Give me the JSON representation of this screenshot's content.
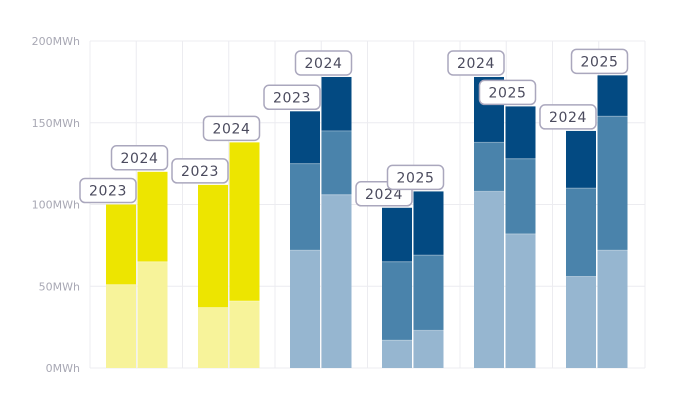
{
  "chart_data": {
    "type": "bar",
    "stacked": true,
    "grouped": true,
    "ylim": [
      0,
      200
    ],
    "yticks": [
      0,
      50,
      100,
      150,
      200
    ],
    "ytick_labels": [
      "0MWh",
      "50MWh",
      "100MWh",
      "150MWh",
      "200MWh"
    ],
    "unit": "MWh",
    "grid": true,
    "groups": [
      {
        "palette": "yellow",
        "bars": [
          {
            "label": "2023",
            "segments": [
              51,
              49
            ]
          },
          {
            "label": "2024",
            "segments": [
              65,
              55
            ]
          }
        ]
      },
      {
        "palette": "yellow",
        "bars": [
          {
            "label": "2023",
            "segments": [
              37,
              75
            ]
          },
          {
            "label": "2024",
            "segments": [
              41,
              97
            ]
          }
        ]
      },
      {
        "palette": "blue",
        "bars": [
          {
            "label": "2023",
            "segments": [
              72,
              53,
              32
            ]
          },
          {
            "label": "2024",
            "segments": [
              106,
              39,
              33
            ]
          }
        ]
      },
      {
        "palette": "blue",
        "bars": [
          {
            "label": "2024",
            "segments": [
              17,
              48,
              33
            ]
          },
          {
            "label": "2025",
            "segments": [
              23,
              46,
              39
            ]
          }
        ]
      },
      {
        "palette": "blue",
        "bars": [
          {
            "label": "2024",
            "segments": [
              108,
              30,
              40
            ]
          },
          {
            "label": "2025",
            "segments": [
              82,
              46,
              32
            ]
          }
        ]
      },
      {
        "palette": "blue",
        "bars": [
          {
            "label": "2024",
            "segments": [
              56,
              54,
              35
            ]
          },
          {
            "label": "2025",
            "segments": [
              72,
              82,
              25
            ]
          }
        ]
      }
    ]
  },
  "colors": {
    "yellow": [
      "#f7f39a",
      "#ede500"
    ],
    "blue": [
      "#96b6d0",
      "#4a83ab",
      "#034a82"
    ],
    "grid": "#ececf0",
    "badge_border": "#aaa7bd",
    "badge_fill": "#ffffff"
  }
}
